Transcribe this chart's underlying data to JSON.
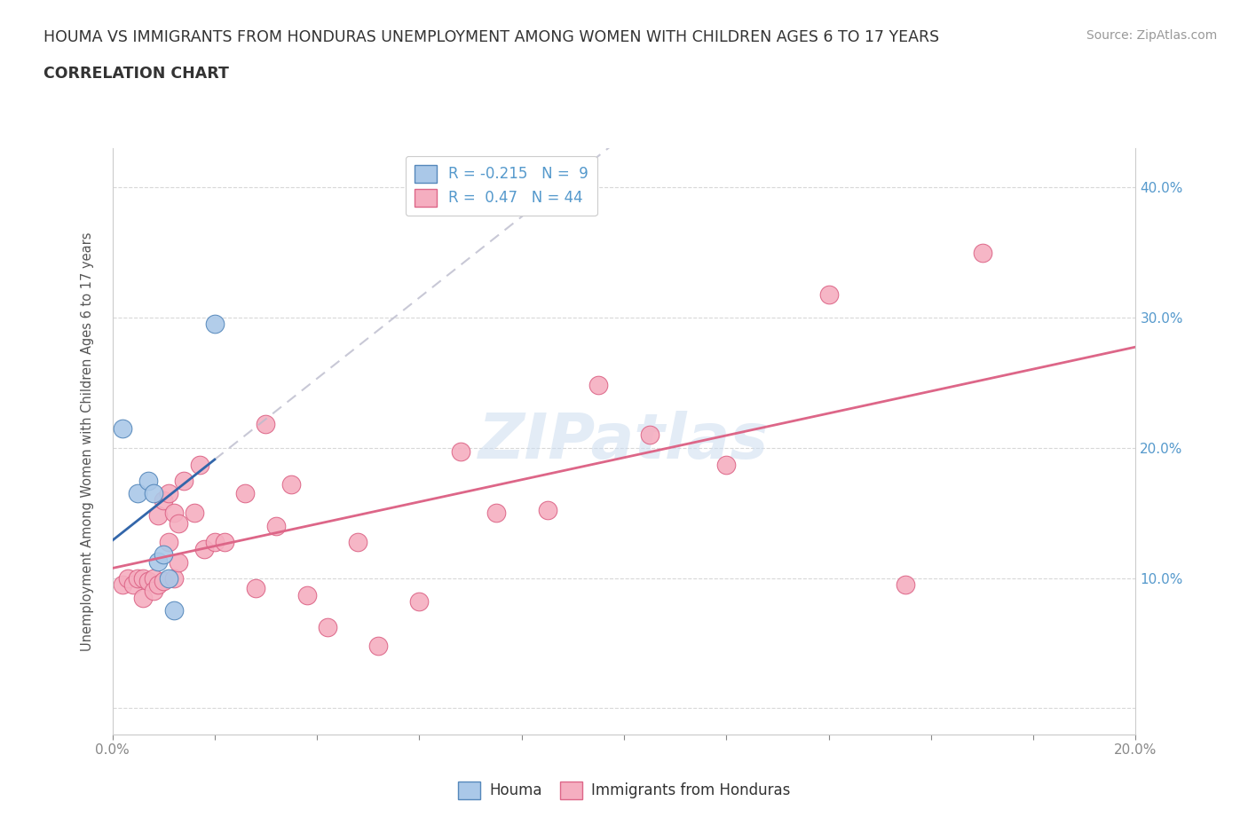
{
  "title_line1": "HOUMA VS IMMIGRANTS FROM HONDURAS UNEMPLOYMENT AMONG WOMEN WITH CHILDREN AGES 6 TO 17 YEARS",
  "title_line2": "CORRELATION CHART",
  "source_text": "Source: ZipAtlas.com",
  "watermark": "ZIPatlas",
  "ylabel": "Unemployment Among Women with Children Ages 6 to 17 years",
  "xlim": [
    0.0,
    0.2
  ],
  "ylim": [
    -0.02,
    0.43
  ],
  "xticks": [
    0.0,
    0.02,
    0.04,
    0.06,
    0.08,
    0.1,
    0.12,
    0.14,
    0.16,
    0.18,
    0.2
  ],
  "xtick_labels": [
    "0.0%",
    "",
    "",
    "",
    "",
    "",
    "",
    "",
    "",
    "",
    "20.0%"
  ],
  "yticks": [
    0.0,
    0.1,
    0.2,
    0.3,
    0.4
  ],
  "ytick_labels_right": [
    "",
    "10.0%",
    "20.0%",
    "30.0%",
    "40.0%"
  ],
  "houma_color": "#aac8e8",
  "houma_edge_color": "#5588bb",
  "honduras_color": "#f5aec0",
  "honduras_edge_color": "#dd6688",
  "houma_R": -0.215,
  "houma_N": 9,
  "honduras_R": 0.47,
  "honduras_N": 44,
  "houma_line_color": "#3366aa",
  "honduras_line_color": "#dd6688",
  "grid_color": "#d8d8d8",
  "axis_color": "#5599cc",
  "houma_x": [
    0.002,
    0.005,
    0.007,
    0.008,
    0.009,
    0.01,
    0.011,
    0.012,
    0.02
  ],
  "houma_y": [
    0.215,
    0.165,
    0.175,
    0.165,
    0.113,
    0.118,
    0.1,
    0.075,
    0.295
  ],
  "honduras_x": [
    0.002,
    0.003,
    0.004,
    0.005,
    0.006,
    0.006,
    0.007,
    0.008,
    0.008,
    0.009,
    0.009,
    0.01,
    0.01,
    0.011,
    0.011,
    0.012,
    0.012,
    0.013,
    0.013,
    0.014,
    0.016,
    0.017,
    0.018,
    0.02,
    0.022,
    0.026,
    0.028,
    0.03,
    0.032,
    0.035,
    0.038,
    0.042,
    0.048,
    0.052,
    0.06,
    0.068,
    0.075,
    0.085,
    0.095,
    0.105,
    0.12,
    0.14,
    0.155,
    0.17
  ],
  "honduras_y": [
    0.095,
    0.1,
    0.095,
    0.1,
    0.1,
    0.085,
    0.098,
    0.1,
    0.09,
    0.095,
    0.148,
    0.098,
    0.16,
    0.165,
    0.128,
    0.1,
    0.15,
    0.112,
    0.142,
    0.175,
    0.15,
    0.187,
    0.122,
    0.128,
    0.128,
    0.165,
    0.092,
    0.218,
    0.14,
    0.172,
    0.087,
    0.062,
    0.128,
    0.048,
    0.082,
    0.197,
    0.15,
    0.152,
    0.248,
    0.21,
    0.187,
    0.318,
    0.095,
    0.35
  ]
}
